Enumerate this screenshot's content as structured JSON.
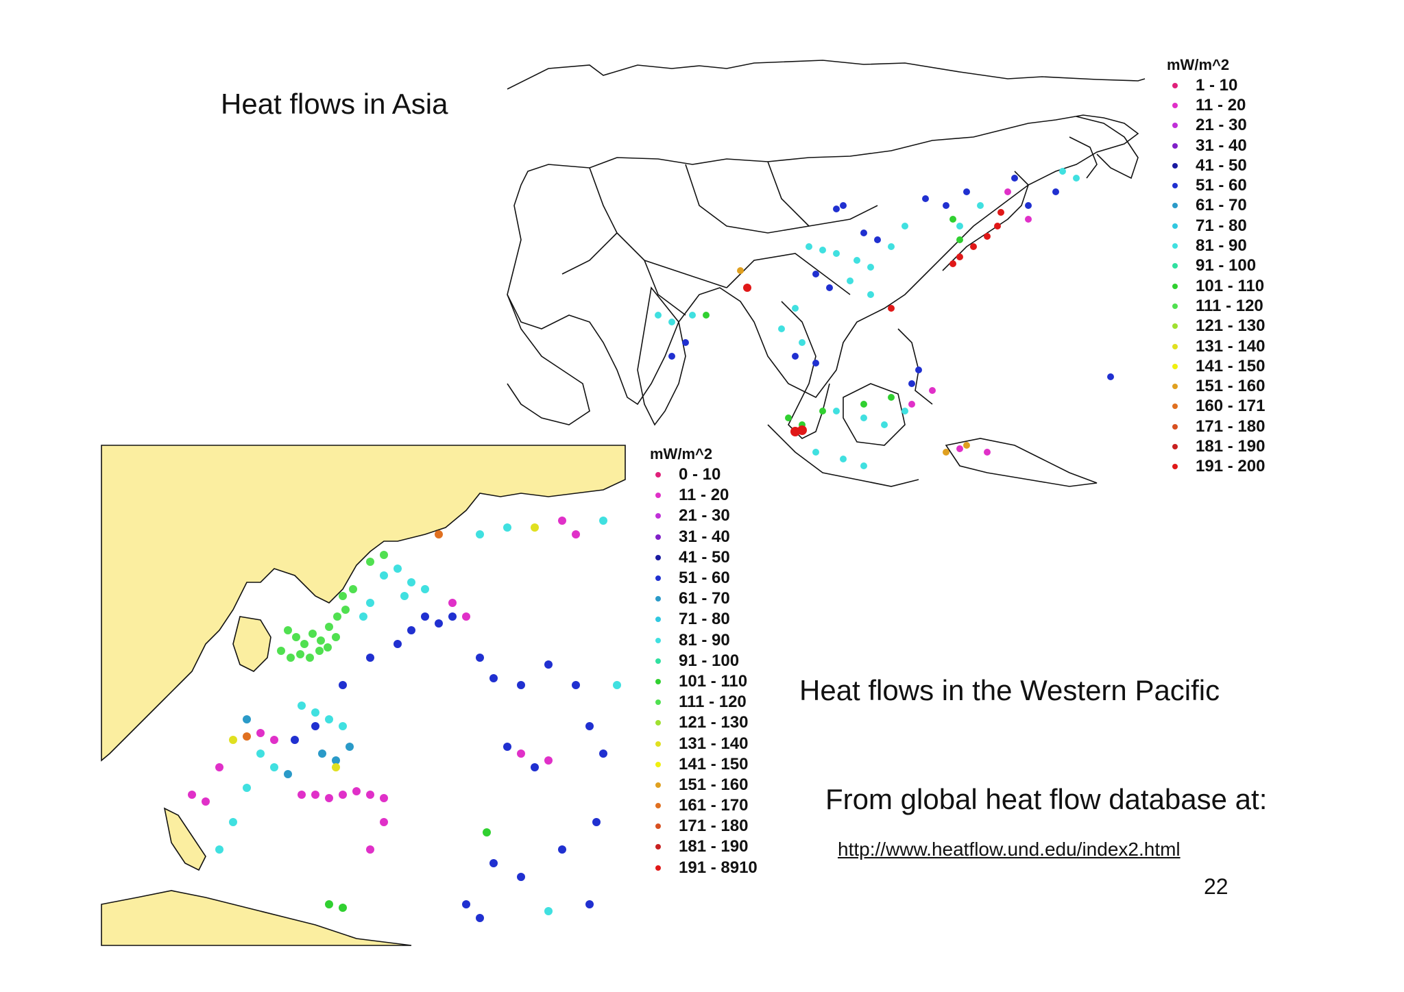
{
  "slide": {
    "title_asia": "Heat flows in Asia",
    "title_western_pacific": "Heat flows in the Western Pacific",
    "source_text": "From global heat flow database at:",
    "source_link": "http://www.heatflow.und.edu/index2.html",
    "page_number": "22"
  },
  "legend_asia": {
    "unit": "mW/m^2",
    "items": [
      {
        "label": "1 - 10",
        "color": "#e0207a"
      },
      {
        "label": "11 - 20",
        "color": "#e030c8"
      },
      {
        "label": "21 - 30",
        "color": "#c030d8"
      },
      {
        "label": "31 - 40",
        "color": "#8020c8"
      },
      {
        "label": "41 - 50",
        "color": "#1a1aa0"
      },
      {
        "label": "51 - 60",
        "color": "#2030d0"
      },
      {
        "label": "61 - 70",
        "color": "#2a9ac8"
      },
      {
        "label": "71 - 80",
        "color": "#30c8e0"
      },
      {
        "label": "81 - 90",
        "color": "#40e0e0"
      },
      {
        "label": "91 - 100",
        "color": "#30e0a0"
      },
      {
        "label": "101 - 110",
        "color": "#30d030"
      },
      {
        "label": "111 - 120",
        "color": "#50e050"
      },
      {
        "label": "121 - 130",
        "color": "#a0e030"
      },
      {
        "label": "131 - 140",
        "color": "#e0e020"
      },
      {
        "label": "141 - 150",
        "color": "#f0f010"
      },
      {
        "label": "151 - 160",
        "color": "#e0a020"
      },
      {
        "label": "160 - 171",
        "color": "#e07020"
      },
      {
        "label": "171 - 180",
        "color": "#d85020"
      },
      {
        "label": "181 - 190",
        "color": "#c82020"
      },
      {
        "label": "191 - 200",
        "color": "#e01818"
      }
    ]
  },
  "legend_western_pacific": {
    "unit": "mW/m^2",
    "items": [
      {
        "label": "0 - 10",
        "color": "#e0207a"
      },
      {
        "label": "11 - 20",
        "color": "#e030c8"
      },
      {
        "label": "21 - 30",
        "color": "#c030d8"
      },
      {
        "label": "31 - 40",
        "color": "#8020c8"
      },
      {
        "label": "41 - 50",
        "color": "#1a1aa0"
      },
      {
        "label": "51 - 60",
        "color": "#2030d0"
      },
      {
        "label": "61 - 70",
        "color": "#2a9ac8"
      },
      {
        "label": "71 - 80",
        "color": "#30c8e0"
      },
      {
        "label": "81 - 90",
        "color": "#40e0e0"
      },
      {
        "label": "91 - 100",
        "color": "#30e0a0"
      },
      {
        "label": "101 - 110",
        "color": "#30d030"
      },
      {
        "label": "111 - 120",
        "color": "#50e050"
      },
      {
        "label": "121 - 130",
        "color": "#a0e030"
      },
      {
        "label": "131 - 140",
        "color": "#e0e020"
      },
      {
        "label": "141 - 150",
        "color": "#f0f010"
      },
      {
        "label": "151 - 160",
        "color": "#e0a020"
      },
      {
        "label": "161 - 170",
        "color": "#e07020"
      },
      {
        "label": "171 - 180",
        "color": "#d85020"
      },
      {
        "label": "181 - 190",
        "color": "#c82020"
      },
      {
        "label": "191 - 8910",
        "color": "#e01818"
      }
    ]
  },
  "colors": {
    "land_western_pacific": "#fbeea0",
    "ocean": "#ffffff",
    "coastline": "#111111"
  }
}
